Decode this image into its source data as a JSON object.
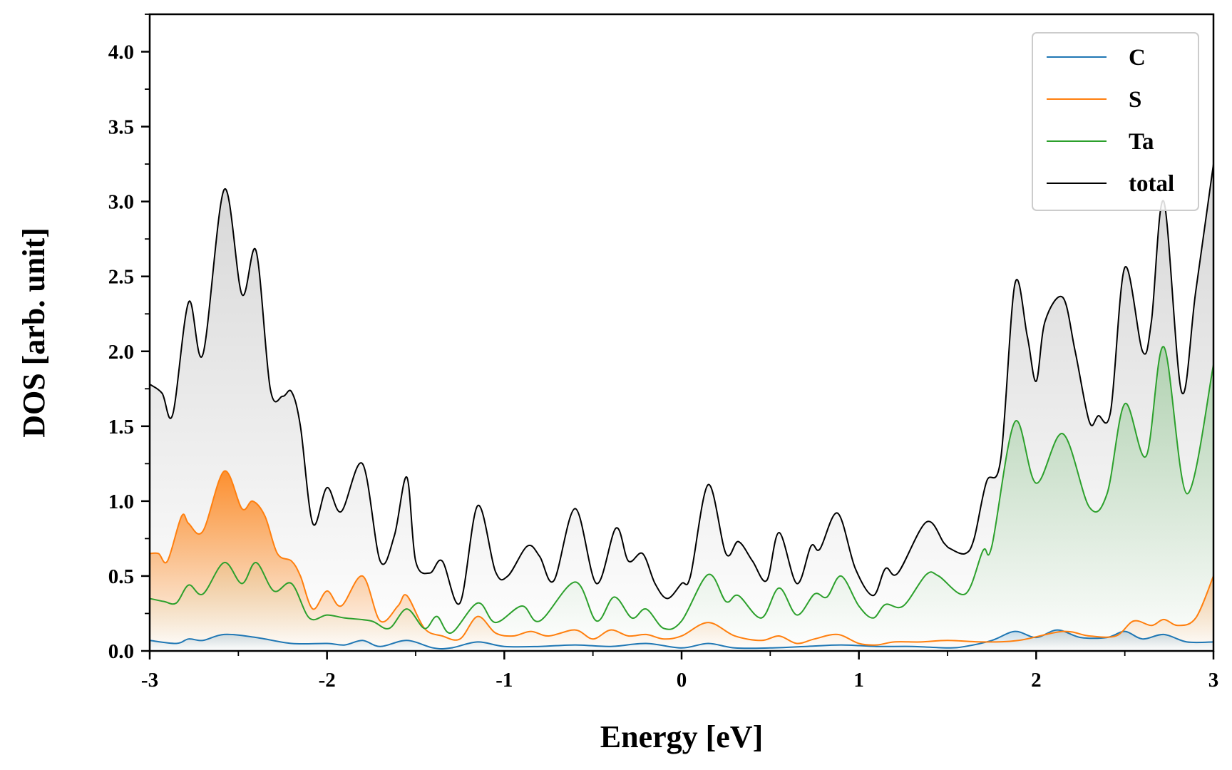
{
  "chart_data": {
    "type": "area",
    "xlabel": "Energy [eV]",
    "ylabel": "DOS [arb. unit]",
    "xlim": [
      -3,
      3
    ],
    "ylim": [
      0,
      4.25
    ],
    "xticks": [
      -3,
      -2,
      -1,
      0,
      1,
      2,
      3
    ],
    "xtick_labels": [
      "-3",
      "-2",
      "-1",
      "0",
      "1",
      "2",
      "3"
    ],
    "yticks": [
      0,
      0.5,
      1.0,
      1.5,
      2.0,
      2.5,
      3.0,
      3.5,
      4.0
    ],
    "ytick_labels": [
      "0.0",
      "0.5",
      "1.0",
      "1.5",
      "2.0",
      "2.5",
      "3.0",
      "3.5",
      "4.0"
    ],
    "legend_position": "top-right",
    "grid": false,
    "series": [
      {
        "name": "C",
        "color": "#1f77b4",
        "x": [
          -3.0,
          -2.85,
          -2.78,
          -2.7,
          -2.58,
          -2.4,
          -2.2,
          -2.0,
          -1.9,
          -1.8,
          -1.7,
          -1.55,
          -1.4,
          -1.3,
          -1.15,
          -1.0,
          -0.8,
          -0.6,
          -0.4,
          -0.2,
          0.0,
          0.15,
          0.3,
          0.5,
          0.7,
          0.9,
          1.1,
          1.3,
          1.5,
          1.6,
          1.75,
          1.88,
          2.0,
          2.12,
          2.25,
          2.4,
          2.5,
          2.6,
          2.72,
          2.85,
          3.0
        ],
        "values": [
          0.07,
          0.05,
          0.08,
          0.07,
          0.11,
          0.09,
          0.05,
          0.05,
          0.04,
          0.07,
          0.03,
          0.07,
          0.02,
          0.02,
          0.06,
          0.03,
          0.03,
          0.04,
          0.03,
          0.05,
          0.02,
          0.05,
          0.02,
          0.02,
          0.03,
          0.04,
          0.03,
          0.03,
          0.02,
          0.03,
          0.07,
          0.13,
          0.09,
          0.14,
          0.09,
          0.09,
          0.13,
          0.08,
          0.11,
          0.06,
          0.06
        ]
      },
      {
        "name": "S",
        "color": "#ff7f0e",
        "x": [
          -3.0,
          -2.95,
          -2.9,
          -2.82,
          -2.78,
          -2.7,
          -2.58,
          -2.48,
          -2.42,
          -2.35,
          -2.28,
          -2.2,
          -2.15,
          -2.08,
          -2.0,
          -1.92,
          -1.8,
          -1.7,
          -1.6,
          -1.55,
          -1.45,
          -1.35,
          -1.25,
          -1.15,
          -1.05,
          -0.95,
          -0.85,
          -0.75,
          -0.6,
          -0.5,
          -0.4,
          -0.3,
          -0.2,
          -0.1,
          0.0,
          0.15,
          0.3,
          0.45,
          0.55,
          0.65,
          0.75,
          0.88,
          1.0,
          1.1,
          1.2,
          1.35,
          1.5,
          1.7,
          1.9,
          2.15,
          2.3,
          2.45,
          2.55,
          2.65,
          2.72,
          2.8,
          2.9,
          3.0
        ],
        "values": [
          0.65,
          0.65,
          0.6,
          0.9,
          0.85,
          0.8,
          1.2,
          0.95,
          1.0,
          0.9,
          0.65,
          0.6,
          0.5,
          0.28,
          0.4,
          0.3,
          0.5,
          0.2,
          0.3,
          0.37,
          0.15,
          0.1,
          0.08,
          0.23,
          0.12,
          0.1,
          0.13,
          0.1,
          0.14,
          0.08,
          0.14,
          0.1,
          0.11,
          0.08,
          0.1,
          0.19,
          0.1,
          0.07,
          0.1,
          0.05,
          0.08,
          0.11,
          0.05,
          0.04,
          0.06,
          0.06,
          0.07,
          0.06,
          0.07,
          0.13,
          0.1,
          0.1,
          0.2,
          0.17,
          0.21,
          0.17,
          0.22,
          0.5
        ]
      },
      {
        "name": "Ta",
        "color": "#2ca02c",
        "x": [
          -3.0,
          -2.92,
          -2.85,
          -2.78,
          -2.7,
          -2.58,
          -2.48,
          -2.4,
          -2.3,
          -2.2,
          -2.1,
          -2.0,
          -1.9,
          -1.75,
          -1.65,
          -1.55,
          -1.45,
          -1.38,
          -1.3,
          -1.15,
          -1.05,
          -0.9,
          -0.8,
          -0.6,
          -0.48,
          -0.38,
          -0.28,
          -0.2,
          -0.1,
          0.0,
          0.15,
          0.25,
          0.32,
          0.45,
          0.55,
          0.65,
          0.75,
          0.82,
          0.9,
          1.0,
          1.08,
          1.15,
          1.25,
          1.38,
          1.45,
          1.6,
          1.7,
          1.75,
          1.88,
          2.0,
          2.15,
          2.3,
          2.4,
          2.5,
          2.62,
          2.72,
          2.85,
          3.0
        ],
        "values": [
          0.35,
          0.33,
          0.32,
          0.44,
          0.38,
          0.59,
          0.45,
          0.59,
          0.4,
          0.45,
          0.22,
          0.24,
          0.22,
          0.2,
          0.15,
          0.28,
          0.15,
          0.23,
          0.12,
          0.32,
          0.19,
          0.3,
          0.2,
          0.46,
          0.2,
          0.36,
          0.22,
          0.28,
          0.15,
          0.2,
          0.51,
          0.33,
          0.37,
          0.22,
          0.42,
          0.24,
          0.38,
          0.36,
          0.5,
          0.3,
          0.22,
          0.31,
          0.3,
          0.51,
          0.5,
          0.38,
          0.67,
          0.7,
          1.53,
          1.12,
          1.45,
          0.96,
          1.05,
          1.65,
          1.3,
          2.03,
          1.05,
          1.91
        ]
      },
      {
        "name": "total",
        "color": "#000000",
        "x": [
          -3.0,
          -2.93,
          -2.87,
          -2.78,
          -2.7,
          -2.58,
          -2.48,
          -2.4,
          -2.32,
          -2.25,
          -2.2,
          -2.15,
          -2.08,
          -2.0,
          -1.92,
          -1.8,
          -1.7,
          -1.62,
          -1.55,
          -1.5,
          -1.42,
          -1.35,
          -1.25,
          -1.15,
          -1.05,
          -0.98,
          -0.87,
          -0.8,
          -0.72,
          -0.6,
          -0.48,
          -0.37,
          -0.3,
          -0.22,
          -0.15,
          -0.08,
          0.0,
          0.05,
          0.15,
          0.25,
          0.32,
          0.4,
          0.48,
          0.55,
          0.65,
          0.73,
          0.78,
          0.88,
          0.98,
          1.08,
          1.15,
          1.22,
          1.38,
          1.48,
          1.52,
          1.6,
          1.65,
          1.72,
          1.8,
          1.88,
          1.95,
          2.0,
          2.05,
          2.15,
          2.22,
          2.3,
          2.35,
          2.42,
          2.5,
          2.6,
          2.65,
          2.72,
          2.82,
          2.9,
          3.0
        ],
        "values": [
          1.78,
          1.72,
          1.58,
          2.33,
          1.98,
          3.08,
          2.38,
          2.67,
          1.75,
          1.7,
          1.73,
          1.5,
          0.85,
          1.09,
          0.93,
          1.25,
          0.6,
          0.77,
          1.16,
          0.6,
          0.52,
          0.6,
          0.32,
          0.97,
          0.53,
          0.5,
          0.7,
          0.63,
          0.47,
          0.95,
          0.45,
          0.82,
          0.6,
          0.65,
          0.45,
          0.35,
          0.45,
          0.5,
          1.11,
          0.65,
          0.73,
          0.6,
          0.47,
          0.79,
          0.45,
          0.7,
          0.68,
          0.92,
          0.55,
          0.37,
          0.55,
          0.52,
          0.86,
          0.72,
          0.68,
          0.65,
          0.75,
          1.13,
          1.28,
          2.45,
          2.1,
          1.8,
          2.2,
          2.36,
          2.0,
          1.53,
          1.57,
          1.6,
          2.56,
          2.0,
          2.2,
          3.0,
          1.73,
          2.4,
          3.25
        ]
      }
    ]
  }
}
